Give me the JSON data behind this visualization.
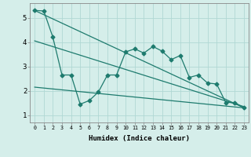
{
  "xlabel": "Humidex (Indice chaleur)",
  "background_color": "#d5eeea",
  "grid_color": "#b0d8d4",
  "line_color": "#1e7b6e",
  "xlim": [
    -0.5,
    23.5
  ],
  "ylim": [
    0.7,
    5.6
  ],
  "yticks": [
    1,
    2,
    3,
    4,
    5
  ],
  "xticks": [
    0,
    1,
    2,
    3,
    4,
    5,
    6,
    7,
    8,
    9,
    10,
    11,
    12,
    13,
    14,
    15,
    16,
    17,
    18,
    19,
    20,
    21,
    22,
    23
  ],
  "line1_x": [
    0,
    23
  ],
  "line1_y": [
    5.3,
    1.3
  ],
  "line2_x": [
    0,
    23
  ],
  "line2_y": [
    4.05,
    1.35
  ],
  "line3_x": [
    0,
    1,
    2,
    3,
    4,
    5,
    6,
    7,
    8,
    9,
    10,
    11,
    12,
    13,
    14,
    15,
    16,
    17,
    18,
    19,
    20,
    21,
    22,
    23
  ],
  "line3_y": [
    5.3,
    5.28,
    4.2,
    2.65,
    2.65,
    1.45,
    1.6,
    1.95,
    2.65,
    2.65,
    3.6,
    3.72,
    3.55,
    3.82,
    3.63,
    3.28,
    3.45,
    2.55,
    2.65,
    2.32,
    2.28,
    1.52,
    1.52,
    1.3
  ],
  "line4_x": [
    0,
    23
  ],
  "line4_y": [
    2.15,
    1.3
  ]
}
